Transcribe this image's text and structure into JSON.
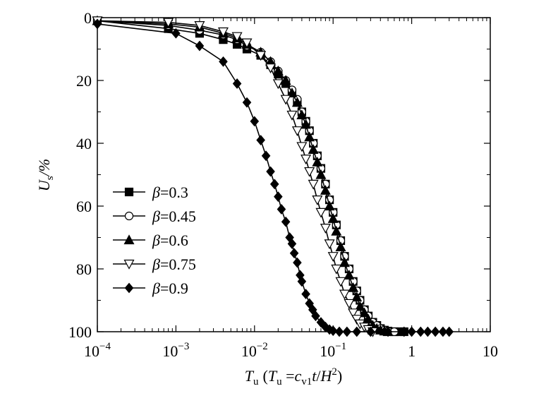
{
  "chart_data": {
    "type": "line",
    "xscale": "log",
    "xlim": [
      0.0001,
      10
    ],
    "ylim": [
      0,
      100
    ],
    "y_inverted": true,
    "grid": false,
    "legend_position": "left-middle",
    "xlabel": {
      "var": "T",
      "var_sub": "u",
      "def_open": "(",
      "def_var": "T",
      "def_var_sub": "u",
      "def_eq": " =",
      "def_c": "c",
      "def_c_sub": "v1",
      "def_t": "t",
      "def_slash": "/",
      "def_H": "H",
      "def_exp": "2",
      "def_close": ")"
    },
    "ylabel": {
      "var": "U",
      "var_sub": "s",
      "unit": "/%"
    },
    "x_ticks": [
      {
        "value": 0.0001,
        "base": "10",
        "exp": "−4"
      },
      {
        "value": 0.001,
        "base": "10",
        "exp": "−3"
      },
      {
        "value": 0.01,
        "base": "10",
        "exp": "−2"
      },
      {
        "value": 0.1,
        "base": "10",
        "exp": "−1"
      },
      {
        "value": 1,
        "base": "1",
        "exp": ""
      },
      {
        "value": 10,
        "base": "10",
        "exp": ""
      }
    ],
    "y_ticks": [
      "0",
      "20",
      "40",
      "60",
      "80",
      "100"
    ],
    "series": [
      {
        "name": "β=0.3",
        "name_greek": "β",
        "name_value": "=0.3",
        "marker": "square",
        "x": [
          0.0001,
          0.0008,
          0.002,
          0.004,
          0.006,
          0.008,
          0.012,
          0.016,
          0.02,
          0.025,
          0.03,
          0.035,
          0.04,
          0.045,
          0.05,
          0.056,
          0.063,
          0.07,
          0.08,
          0.09,
          0.1,
          0.11,
          0.125,
          0.14,
          0.16,
          0.18,
          0.2,
          0.22,
          0.25,
          0.28,
          0.32,
          0.36,
          0.4,
          0.45,
          0.5,
          0.6,
          0.7,
          0.8
        ],
        "y": [
          1,
          3.5,
          5,
          7,
          8.5,
          10,
          12,
          15,
          18,
          21,
          24,
          27,
          30,
          33,
          36,
          40,
          44,
          48,
          53,
          58,
          62,
          66,
          71,
          76,
          80,
          84,
          87,
          90,
          93,
          95,
          97,
          98,
          99,
          99.5,
          99.8,
          100,
          100,
          100
        ]
      },
      {
        "name": "β=0.45",
        "name_greek": "β",
        "name_value": "=0.45",
        "marker": "circle-open",
        "x": [
          0.0001,
          0.0008,
          0.002,
          0.004,
          0.006,
          0.008,
          0.012,
          0.016,
          0.02,
          0.025,
          0.03,
          0.035,
          0.04,
          0.045,
          0.05,
          0.056,
          0.063,
          0.07,
          0.08,
          0.09,
          0.1,
          0.11,
          0.125,
          0.14,
          0.16,
          0.18,
          0.2,
          0.22,
          0.25,
          0.28,
          0.32,
          0.36,
          0.4,
          0.45,
          0.5,
          0.6
        ],
        "y": [
          1,
          2.5,
          4,
          5.5,
          7,
          9,
          11,
          14,
          17,
          20,
          23,
          26,
          30,
          33,
          36,
          40,
          44,
          48,
          53,
          58,
          62,
          66,
          71,
          76,
          80,
          84,
          87,
          90,
          93,
          95,
          97,
          98,
          99,
          99.5,
          99.8,
          100
        ]
      },
      {
        "name": "β=0.6",
        "name_greek": "β",
        "name_value": "=0.6",
        "marker": "triangle-up",
        "x": [
          0.0001,
          0.0008,
          0.002,
          0.004,
          0.006,
          0.008,
          0.012,
          0.016,
          0.02,
          0.025,
          0.03,
          0.035,
          0.04,
          0.045,
          0.05,
          0.056,
          0.063,
          0.07,
          0.08,
          0.09,
          0.1,
          0.11,
          0.125,
          0.14,
          0.16,
          0.18,
          0.2,
          0.22,
          0.25,
          0.28,
          0.32,
          0.36,
          0.4,
          0.45,
          0.5
        ],
        "y": [
          1,
          2,
          3,
          5,
          6.5,
          8.5,
          11,
          14,
          17,
          20,
          24,
          27,
          31,
          34,
          38,
          42,
          46,
          50,
          55,
          60,
          64,
          68,
          73,
          78,
          82,
          86,
          89,
          92,
          94,
          96,
          98,
          99,
          99.5,
          99.8,
          100
        ]
      },
      {
        "name": "β=0.75",
        "name_greek": "β",
        "name_value": "=0.75",
        "marker": "triangle-down-open",
        "x": [
          0.0001,
          0.0008,
          0.002,
          0.004,
          0.006,
          0.008,
          0.012,
          0.016,
          0.02,
          0.025,
          0.03,
          0.035,
          0.04,
          0.045,
          0.05,
          0.056,
          0.063,
          0.07,
          0.08,
          0.09,
          0.1,
          0.11,
          0.125,
          0.14,
          0.16,
          0.18,
          0.2,
          0.22,
          0.25,
          0.28,
          0.32
        ],
        "y": [
          1,
          1.5,
          2.5,
          4.5,
          6,
          8,
          12,
          16,
          21,
          26,
          31,
          36,
          41,
          45,
          49,
          53,
          58,
          62,
          67,
          72,
          76,
          80,
          84,
          88,
          91,
          94,
          96,
          97.5,
          98.5,
          99.3,
          100
        ]
      },
      {
        "name": "β=0.9",
        "name_greek": "β",
        "name_value": "=0.9",
        "marker": "diamond",
        "x": [
          0.0001,
          0.001,
          0.002,
          0.004,
          0.006,
          0.008,
          0.01,
          0.012,
          0.014,
          0.016,
          0.018,
          0.02,
          0.022,
          0.025,
          0.028,
          0.03,
          0.032,
          0.035,
          0.038,
          0.04,
          0.045,
          0.05,
          0.055,
          0.06,
          0.07,
          0.08,
          0.09,
          0.1,
          0.12,
          0.15,
          0.2,
          0.3,
          0.5,
          0.8,
          1.0,
          1.3,
          1.6,
          2.0,
          2.5,
          3.0
        ],
        "y": [
          2,
          5,
          9,
          14,
          21,
          27,
          33,
          39,
          44,
          49,
          53,
          57,
          61,
          65,
          70,
          72,
          75,
          78,
          82,
          84,
          88,
          91,
          93,
          95,
          97,
          98.5,
          99.3,
          99.7,
          100,
          100,
          100,
          100,
          100,
          100,
          100,
          100,
          100,
          100,
          100,
          100
        ]
      }
    ]
  }
}
